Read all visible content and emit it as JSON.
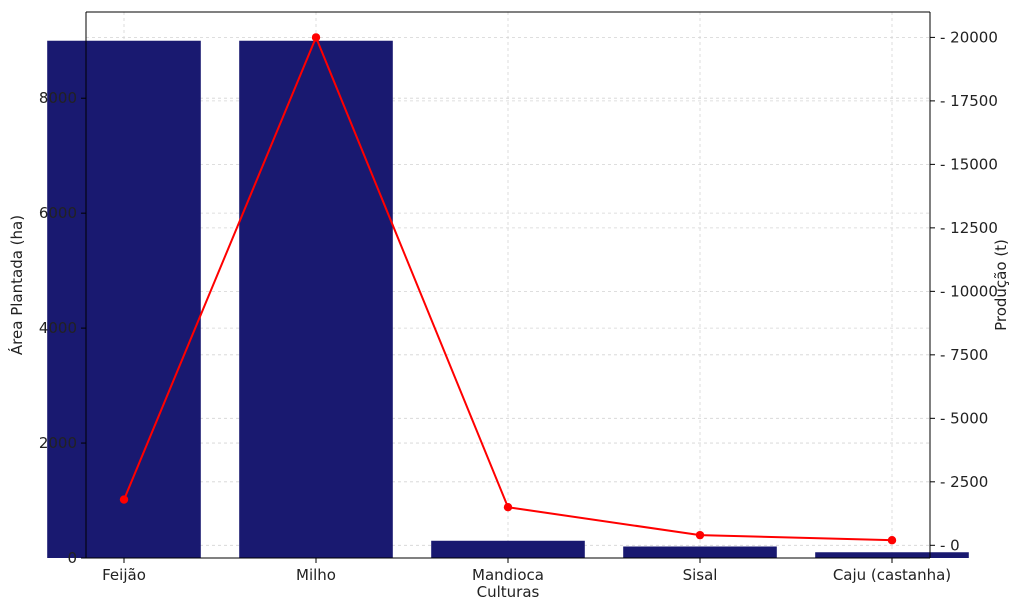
{
  "chart_data": {
    "type": "bar",
    "title": "",
    "xlabel": "Culturas",
    "categories": [
      "Feijão",
      "Milho",
      "Mandioca",
      "Sisal",
      "Caju (castanha)"
    ],
    "series": [
      {
        "name": "Área Plantada (ha)",
        "type": "bar",
        "axis": "left",
        "color": "#191970",
        "values": [
          9000,
          9000,
          300,
          200,
          100
        ]
      },
      {
        "name": "Produção (t)",
        "type": "line",
        "axis": "right",
        "color": "#ff0000",
        "values": [
          1800,
          20000,
          1500,
          400,
          200
        ]
      }
    ],
    "y_left": {
      "label": "Área Plantada (ha)",
      "ylim": [
        0,
        9500
      ],
      "ticks": [
        0,
        2000,
        4000,
        6000,
        8000
      ]
    },
    "y_right": {
      "label": "Produção (t)",
      "ylim": [
        -500,
        21000
      ],
      "ticks": [
        0,
        2500,
        5000,
        7500,
        10000,
        12500,
        15000,
        17500,
        20000
      ]
    },
    "grid": true,
    "legend": "none"
  }
}
